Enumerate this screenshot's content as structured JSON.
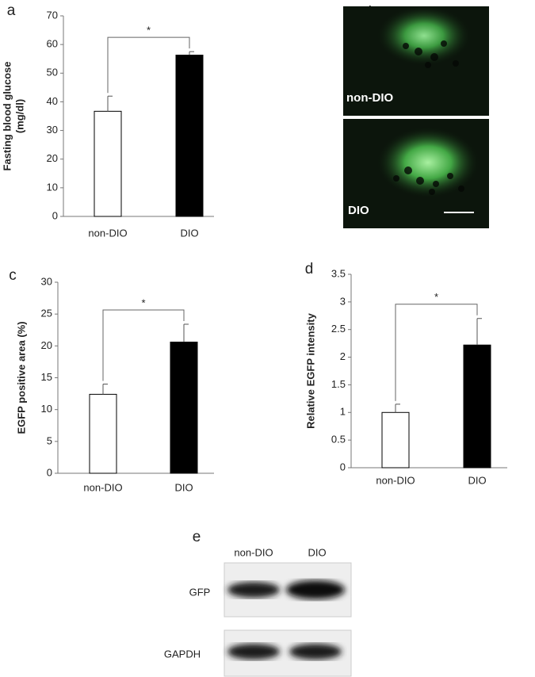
{
  "chart_data": [
    {
      "type": "bar",
      "panel": "a",
      "categories": [
        "non-DIO",
        "DIO"
      ],
      "values": [
        36.7,
        56.3
      ],
      "errors": [
        5.3,
        1.2
      ],
      "colors": [
        "#ffffff",
        "#000000"
      ],
      "ylabel": [
        "Fasting blood glucose",
        "(mg/dl)"
      ],
      "ylim": [
        0,
        70
      ],
      "yticks": [
        0,
        10,
        20,
        30,
        40,
        50,
        60,
        70
      ],
      "annotation": "*"
    },
    {
      "type": "bar",
      "panel": "c",
      "categories": [
        "non-DIO",
        "DIO"
      ],
      "values": [
        12.4,
        20.6
      ],
      "errors": [
        1.6,
        2.8
      ],
      "colors": [
        "#ffffff",
        "#000000"
      ],
      "ylabel": [
        "EGFP positive area (%)"
      ],
      "ylim": [
        0,
        30
      ],
      "yticks": [
        0,
        5,
        10,
        15,
        20,
        25,
        30
      ],
      "annotation": "*"
    },
    {
      "type": "bar",
      "panel": "d",
      "categories": [
        "non-DIO",
        "DIO"
      ],
      "values": [
        1.0,
        2.22
      ],
      "errors": [
        0.15,
        0.48
      ],
      "colors": [
        "#ffffff",
        "#000000"
      ],
      "ylabel": [
        "Relative EGFP intensity"
      ],
      "ylim": [
        0,
        3.5
      ],
      "yticks": [
        0,
        0.5,
        1,
        1.5,
        2,
        2.5,
        3,
        3.5
      ],
      "annotation": "*"
    }
  ],
  "panel_b": {
    "label": "b",
    "images": [
      "non-DIO",
      "DIO"
    ]
  },
  "panel_e": {
    "label": "e",
    "lanes": [
      "non-DIO",
      "DIO"
    ],
    "rows": [
      "GFP",
      "GAPDH"
    ]
  }
}
